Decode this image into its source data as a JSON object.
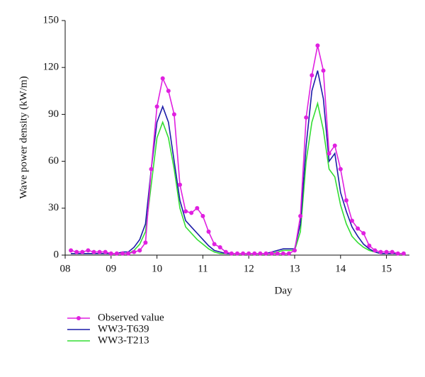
{
  "chart_data": {
    "type": "line",
    "x_label": "Day",
    "y_label": "Wave power density (kW/m)",
    "x": [
      8.125,
      8.25,
      8.375,
      8.5,
      8.625,
      8.75,
      8.875,
      9.0,
      9.125,
      9.25,
      9.375,
      9.5,
      9.625,
      9.75,
      9.875,
      10.0,
      10.125,
      10.25,
      10.375,
      10.5,
      10.625,
      10.75,
      10.875,
      11.0,
      11.125,
      11.25,
      11.375,
      11.5,
      11.625,
      11.75,
      11.875,
      12.0,
      12.125,
      12.25,
      12.375,
      12.5,
      12.625,
      12.75,
      12.875,
      13.0,
      13.125,
      13.25,
      13.375,
      13.5,
      13.625,
      13.75,
      13.875,
      14.0,
      14.125,
      14.25,
      14.375,
      14.5,
      14.625,
      14.75,
      14.875,
      15.0,
      15.125,
      15.25,
      15.375
    ],
    "series": [
      {
        "name": "Observed value",
        "color": "#e020e0",
        "markers": true,
        "values": [
          3,
          2,
          2,
          3,
          2,
          2,
          2,
          1,
          1,
          1,
          1,
          2,
          3,
          8,
          55,
          95,
          113,
          105,
          90,
          45,
          28,
          27,
          30,
          25,
          15,
          7,
          5,
          2,
          1,
          1,
          1,
          1,
          1,
          1,
          1,
          1,
          1,
          1,
          1,
          3,
          25,
          88,
          115,
          134,
          118,
          65,
          70,
          55,
          35,
          22,
          17,
          14,
          6,
          3,
          2,
          2,
          2,
          1,
          1
        ]
      },
      {
        "name": "WW3-T639",
        "color": "#1c1ca8",
        "markers": false,
        "values": [
          1,
          1,
          1,
          1,
          1,
          1,
          1,
          1,
          1,
          2,
          2,
          5,
          10,
          20,
          55,
          85,
          95,
          85,
          60,
          35,
          22,
          18,
          14,
          10,
          6,
          3,
          2,
          1,
          1,
          1,
          1,
          1,
          1,
          1,
          1,
          2,
          3,
          4,
          4,
          4,
          20,
          70,
          105,
          118,
          100,
          60,
          65,
          40,
          28,
          18,
          12,
          7,
          4,
          2,
          1,
          1,
          1,
          1,
          1
        ]
      },
      {
        "name": "WW3-T213",
        "color": "#33dd33",
        "markers": false,
        "values": [
          1,
          1,
          1,
          1,
          1,
          1,
          1,
          1,
          1,
          1,
          1,
          3,
          7,
          15,
          45,
          75,
          85,
          75,
          55,
          30,
          18,
          14,
          10,
          7,
          4,
          2,
          1,
          1,
          1,
          1,
          1,
          1,
          1,
          1,
          1,
          1,
          2,
          3,
          3,
          3,
          15,
          60,
          85,
          97,
          80,
          55,
          50,
          32,
          20,
          12,
          8,
          5,
          3,
          2,
          1,
          1,
          1,
          1,
          1
        ]
      }
    ],
    "xlim": [
      8,
      15.5
    ],
    "xticks": [
      {
        "value": 8,
        "label": "08"
      },
      {
        "value": 9,
        "label": "09"
      },
      10,
      11,
      12,
      13,
      14,
      15
    ],
    "ylim": [
      0,
      150
    ],
    "yticks": [
      0,
      30,
      60,
      90,
      120,
      150
    ]
  }
}
